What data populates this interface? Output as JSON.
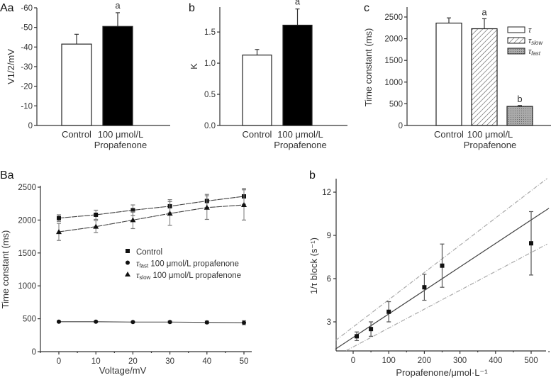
{
  "chart_data": [
    {
      "panel": "Aa",
      "type": "bar",
      "ylabel": "V1/2/mV",
      "ylim": [
        0,
        -60
      ],
      "yticks": [
        "0",
        "-10",
        "-20",
        "-30",
        "-40",
        "-50",
        "-60"
      ],
      "categories": [
        "Control",
        "100 μmol/L Propafenone"
      ],
      "category_lines": [
        [
          "Control"
        ],
        [
          "100 μmol/L",
          "Propafenone"
        ]
      ],
      "values": [
        -41.5,
        -50.5
      ],
      "errors": [
        5.0,
        7.0
      ],
      "fills": [
        "#ffffff",
        "#000000"
      ],
      "annotations": [
        "",
        "a"
      ]
    },
    {
      "panel": "b",
      "type": "bar",
      "ylabel": "K",
      "ylim": [
        0,
        1.9
      ],
      "yticks": [
        "0.0",
        "0.5",
        "1.0",
        "1.5"
      ],
      "categories": [
        "Control",
        "100 μmol/L Propafenone"
      ],
      "category_lines": [
        [
          "Control"
        ],
        [
          "100 μmol/L",
          "Propafenone"
        ]
      ],
      "values": [
        1.13,
        1.61
      ],
      "errors": [
        0.09,
        0.26
      ],
      "fills": [
        "#ffffff",
        "#000000"
      ],
      "annotations": [
        "",
        "a"
      ]
    },
    {
      "panel": "c",
      "type": "bar",
      "ylabel": "Time constant (ms)",
      "ylim": [
        0,
        2750
      ],
      "yticks": [
        "0",
        "500",
        "1000",
        "1500",
        "2000",
        "2500"
      ],
      "category_lines": [
        [
          "Control"
        ],
        [
          "100 μmol/L",
          "Propafenone"
        ]
      ],
      "bars": [
        {
          "series": "τ",
          "value": 2360,
          "error": 120,
          "annotation": ""
        },
        {
          "series": "τslow",
          "value": 2230,
          "error": 230,
          "annotation": "a"
        },
        {
          "series": "τfast",
          "value": 440,
          "error": 20,
          "annotation": "b"
        }
      ],
      "legend": [
        {
          "symbol": "τ",
          "sub": "",
          "fill": "open"
        },
        {
          "symbol": "τ",
          "sub": "slow",
          "fill": "hatched"
        },
        {
          "symbol": "τ",
          "sub": "fast",
          "fill": "gray"
        }
      ],
      "legend_position": "top-right"
    },
    {
      "panel": "Ba",
      "type": "line",
      "xlabel": "Voltage/mV",
      "ylabel": "Time constant (ms)",
      "xlim": [
        -5,
        52
      ],
      "ylim": [
        0,
        2500
      ],
      "xticks": [
        "0",
        "10",
        "20",
        "30",
        "40",
        "50"
      ],
      "yticks": [
        "0",
        "500",
        "1000",
        "1500",
        "2000",
        "2500"
      ],
      "x": [
        0,
        10,
        20,
        30,
        40,
        50
      ],
      "series": [
        {
          "name": "Control",
          "sym": "",
          "sub": "",
          "text": "Control",
          "marker": "square",
          "values": [
            2030,
            2080,
            2150,
            2210,
            2290,
            2360
          ],
          "errors": [
            50,
            70,
            80,
            100,
            100,
            120
          ]
        },
        {
          "name": "τfast 100 μmol/L propafenone",
          "sym": "τ",
          "sub": "fast",
          "text": " 100 μmol/L propafenone",
          "marker": "circle",
          "values": [
            455,
            455,
            450,
            450,
            445,
            440
          ],
          "errors": [
            10,
            10,
            10,
            15,
            20,
            30
          ]
        },
        {
          "name": "τslow 100 μmol/L propafenone",
          "sym": "τ",
          "sub": "slow",
          "text": " 100 μmol/L propafenone",
          "marker": "triangle",
          "values": [
            1820,
            1900,
            2000,
            2100,
            2190,
            2230
          ],
          "errors": [
            130,
            90,
            130,
            180,
            180,
            230
          ]
        }
      ],
      "legend_position": "center-right"
    },
    {
      "panel": "b",
      "type": "scatter",
      "xlabel": "Propafenone/μmol·L⁻¹",
      "ylabel": "1/τ block (s⁻¹)",
      "xlim": [
        -50,
        550
      ],
      "ylim": [
        1,
        13
      ],
      "xticks": [
        "0",
        "100",
        "200",
        "300",
        "400",
        "500"
      ],
      "yticks": [
        "3",
        "6",
        "9",
        "12"
      ],
      "x": [
        10,
        50,
        100,
        200,
        250,
        500
      ],
      "y": [
        2.0,
        2.5,
        3.7,
        5.4,
        6.9,
        8.45
      ],
      "errors": [
        0.3,
        0.5,
        0.7,
        0.9,
        1.5,
        2.2
      ],
      "fit_line": {
        "slope": 0.0163,
        "intercept": 1.92
      },
      "confidence_upper": [
        [
          -50,
          1.7
        ],
        [
          545,
          12.95
        ]
      ],
      "confidence_lower": [
        [
          -20,
          1.0
        ],
        [
          545,
          8.4
        ]
      ]
    }
  ]
}
